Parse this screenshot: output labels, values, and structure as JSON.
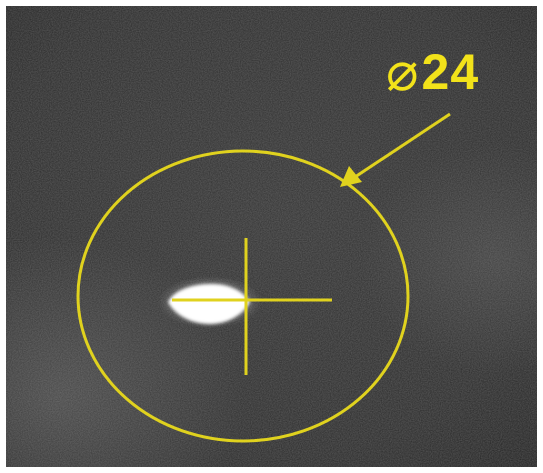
{
  "annotation": {
    "diameter_symbol": "⌀",
    "diameter_value": "24",
    "color": "#f2e21a"
  },
  "scene": {
    "background_color": "#2b2b2b",
    "spot_color": "#ffffff"
  }
}
